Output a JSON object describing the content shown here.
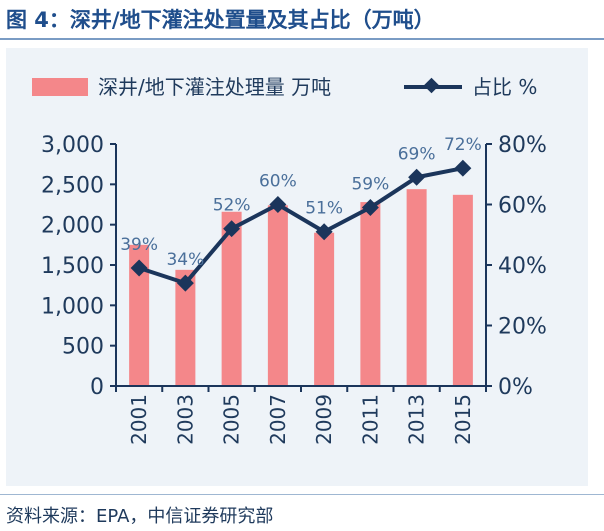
{
  "figure": {
    "title": "图 4：深井/地下灌注处置量及其占比（万吨）",
    "source": "资料来源：EPA，中信证券研究部"
  },
  "colors": {
    "bar": "#f4878a",
    "line": "#1b355b",
    "axis_text": "#1f3a5c",
    "label_text": "#4a6f9a"
  },
  "chart_data": {
    "type": "bar",
    "categories": [
      "2001",
      "2003",
      "2005",
      "2007",
      "2009",
      "2011",
      "2013",
      "2015"
    ],
    "series": [
      {
        "name": "深井/地下灌注处理量 万吨",
        "type": "bar",
        "axis": "left",
        "values": [
          1750,
          1440,
          2160,
          2240,
          1900,
          2280,
          2440,
          2370
        ]
      },
      {
        "name": "占比 %",
        "type": "line",
        "axis": "right",
        "values": [
          39,
          34,
          52,
          60,
          51,
          59,
          69,
          72
        ],
        "labels": [
          "39%",
          "34%",
          "52%",
          "60%",
          "51%",
          "59%",
          "69%",
          "72%"
        ]
      }
    ],
    "y_left": {
      "range": [
        0,
        3000
      ],
      "ticks": [
        0,
        500,
        1000,
        1500,
        2000,
        2500,
        3000
      ],
      "tick_labels": [
        "0",
        "500",
        "1,000",
        "1,500",
        "2,000",
        "2,500",
        "3,000"
      ]
    },
    "y_right": {
      "range": [
        0,
        80
      ],
      "ticks": [
        0,
        20,
        40,
        60,
        80
      ],
      "tick_labels": [
        "0%",
        "20%",
        "40%",
        "60%",
        "80%"
      ]
    },
    "legend_position": "top",
    "grid": false
  }
}
